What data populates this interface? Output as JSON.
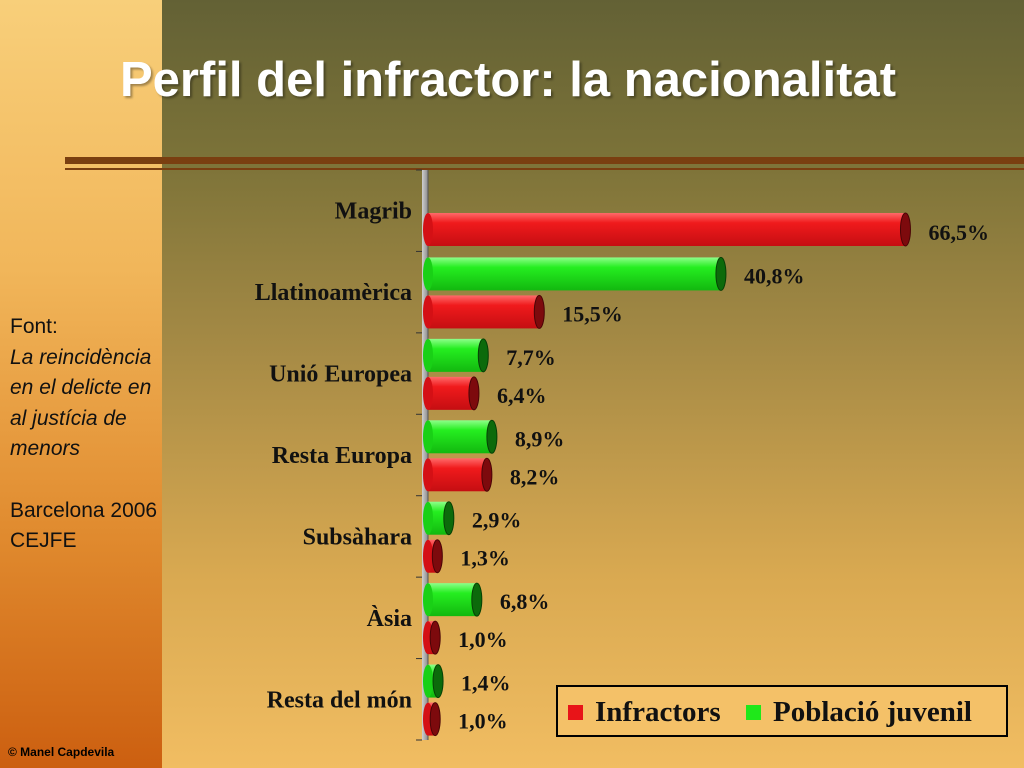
{
  "slide": {
    "title": "Perfil del infractor: la nacionalitat",
    "source_label": "Font:",
    "source_title": "La reincidència en el delicte en al justícia de menors",
    "source_place_year": "Barcelona 2006",
    "source_org": "CEJFE",
    "copyright": "© Manel Capdevila"
  },
  "colors": {
    "infractors": "#e81418",
    "poblacio": "#1fe81a",
    "infractors_end": "#7d0a0d",
    "poblacio_end": "#0c6a0b"
  },
  "chart_data": {
    "type": "bar",
    "orientation": "horizontal",
    "categories": [
      "Magrib",
      "Llatinoamèrica",
      "Unió Europea",
      "Resta Europa",
      "Subsàhara",
      "Àsia",
      "Resta del món"
    ],
    "series": [
      {
        "name": "Població juvenil",
        "values": [
          null,
          40.8,
          7.7,
          8.9,
          2.9,
          6.8,
          1.4
        ],
        "labels": [
          "",
          "40,8%",
          "7,7%",
          "8,9%",
          "2,9%",
          "6,8%",
          "1,4%"
        ]
      },
      {
        "name": "Infractors",
        "values": [
          66.5,
          15.5,
          6.4,
          8.2,
          1.3,
          1.0,
          1.0
        ],
        "labels": [
          "66,5%",
          "15,5%",
          "6,4%",
          "8,2%",
          "1,3%",
          "1,0%",
          "1,0%"
        ]
      }
    ],
    "legend": [
      {
        "name": "Infractors",
        "color": "#e81418"
      },
      {
        "name": "Població juvenil",
        "color": "#1fe81a"
      }
    ],
    "legend_position": "bottom-right",
    "grid": false
  }
}
